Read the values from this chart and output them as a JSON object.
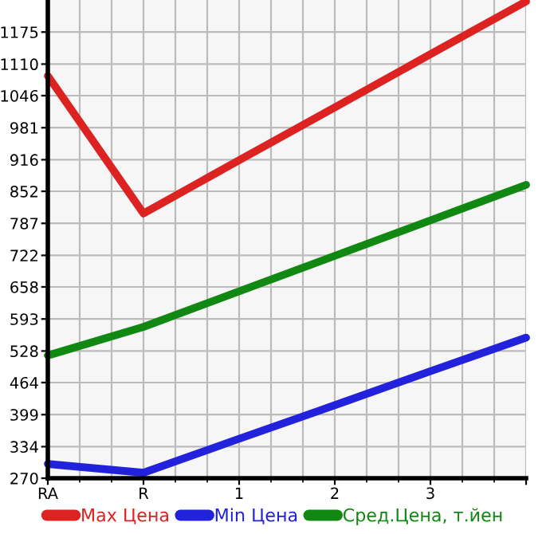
{
  "chart_data": {
    "type": "line",
    "categories": [
      "RA",
      "R",
      "1",
      "2",
      "3",
      null
    ],
    "series": [
      {
        "name": "Max Цена",
        "color": "#dd2222",
        "values": [
          1086,
          807,
          915,
          1022,
          1130,
          1237
        ]
      },
      {
        "name": "Min Цена",
        "color": "#2222dd",
        "values": [
          299,
          281,
          350,
          418,
          487,
          555
        ]
      },
      {
        "name": "Сред.Цена, т.йен",
        "color": "#118811",
        "values": [
          519,
          577,
          649,
          721,
          793,
          865
        ]
      }
    ],
    "ylim": [
      270,
      1240
    ],
    "yticks": [
      270,
      334,
      399,
      464,
      528,
      593,
      658,
      722,
      787,
      852,
      916,
      981,
      1046,
      1110,
      1175
    ],
    "grid": true,
    "legend": "bottom",
    "marker": "none",
    "line_style": "solid"
  }
}
